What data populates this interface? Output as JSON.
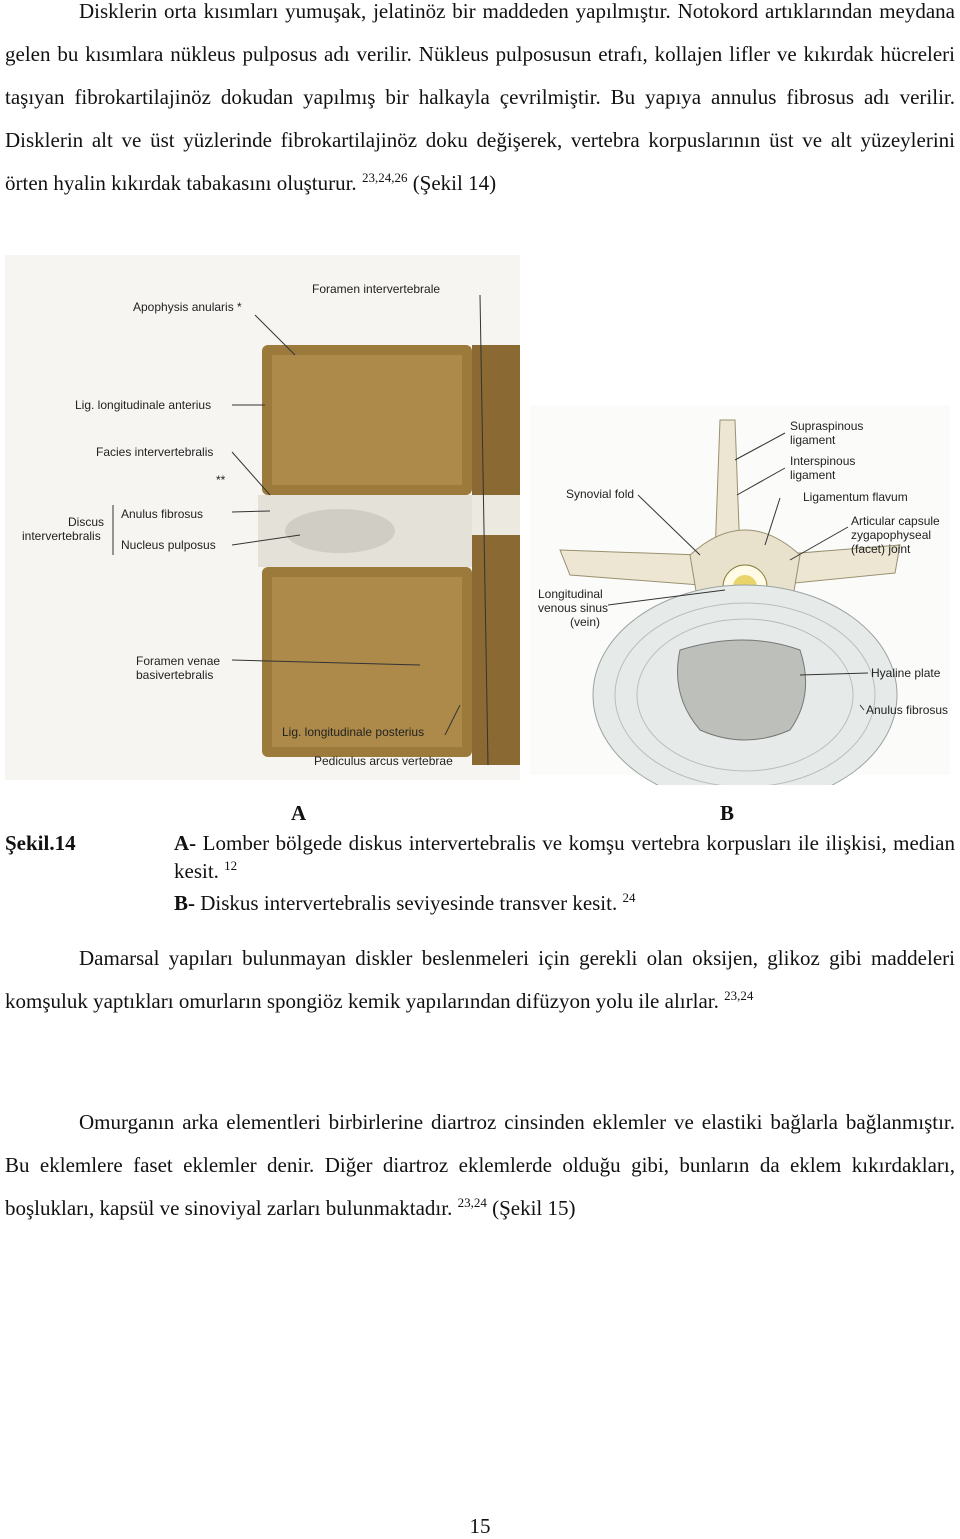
{
  "paragraphs": [
    {
      "text": "Disklerin orta kısımları yumuşak, jelatinöz bir maddeden yapılmıştır. Notokord artıklarından meydana gelen bu kısımlara nükleus pulposus adı verilir. Nükleus pulposusun etrafı, kollajen lifler ve kıkırdak hücreleri taşıyan fibrokartilajinöz dokudan yapılmış bir halkayla çevrilmiştir. Bu yapıya annulus fibrosus adı verilir. Disklerin alt ve üst yüzlerinde fibrokartilajinöz doku değişerek, vertebra korpuslarının üst ve alt yüzeylerini örten hyalin kıkırdak tabakasını oluşturur.",
      "sup": "23,24,26",
      "after": "(Şekil 14)"
    },
    {
      "text": "Damarsal yapıları bulunmayan diskler beslenmeleri için gerekli olan oksijen, glikoz gibi maddeleri komşuluk yaptıkları omurların spongiöz kemik yapılarından difüzyon yolu ile alırlar.",
      "sup": "23,24"
    },
    {
      "text": "Omurganın arka elementleri birbirlerine diartroz cinsinden eklemler ve elastiki bağlarla bağlanmıştır. Bu eklemlere faset eklemler denir. Diğer diartroz eklemlerde olduğu gibi, bunların da eklem kıkırdakları, boşlukları, kapsül ve sinoviyal zarları bulunmaktadır.",
      "sup": "23,24",
      "after": "(Şekil 15)"
    }
  ],
  "figure": {
    "a": {
      "letter": "A",
      "labels": [
        [
          "Foramen intervertebrale"
        ],
        [
          "Apophysis anularis *"
        ],
        [
          "Lig. longitudinale anterius"
        ],
        [
          "Facies intervertebralis"
        ],
        [
          "**"
        ],
        [
          "Discus",
          "intervertebralis"
        ],
        [
          "Anulus fibrosus"
        ],
        [
          "Nucleus pulposus"
        ],
        [
          "Foramen venae",
          "basivertebralis"
        ],
        [
          "Lig. longitudinale posterius"
        ],
        [
          "Pediculus arcus vertebrae"
        ]
      ]
    },
    "b": {
      "letter": "B",
      "labels": [
        [
          "Supraspinous",
          "ligament"
        ],
        [
          "Interspinous",
          "ligament"
        ],
        [
          "Ligamentum flavum"
        ],
        [
          "Synovial fold"
        ],
        [
          "Articular capsule",
          "zygapophyseal",
          "(facet) joint"
        ],
        [
          "Longitudinal",
          "venous sinus",
          "(vein)"
        ],
        [
          "Hyaline plate"
        ],
        [
          "Anulus fibrosus"
        ]
      ]
    }
  },
  "caption": {
    "label": "Şekil.14",
    "items": [
      {
        "prefix": "A-",
        "text": "Lomber bölgede diskus intervertebralis ve komşu vertebra korpusları ile ilişkisi, median kesit.",
        "sup": "12"
      },
      {
        "prefix": "B-",
        "text": "Diskus intervertebralis seviyesinde transver kesit.",
        "sup": "24"
      }
    ]
  },
  "page_number": "15"
}
